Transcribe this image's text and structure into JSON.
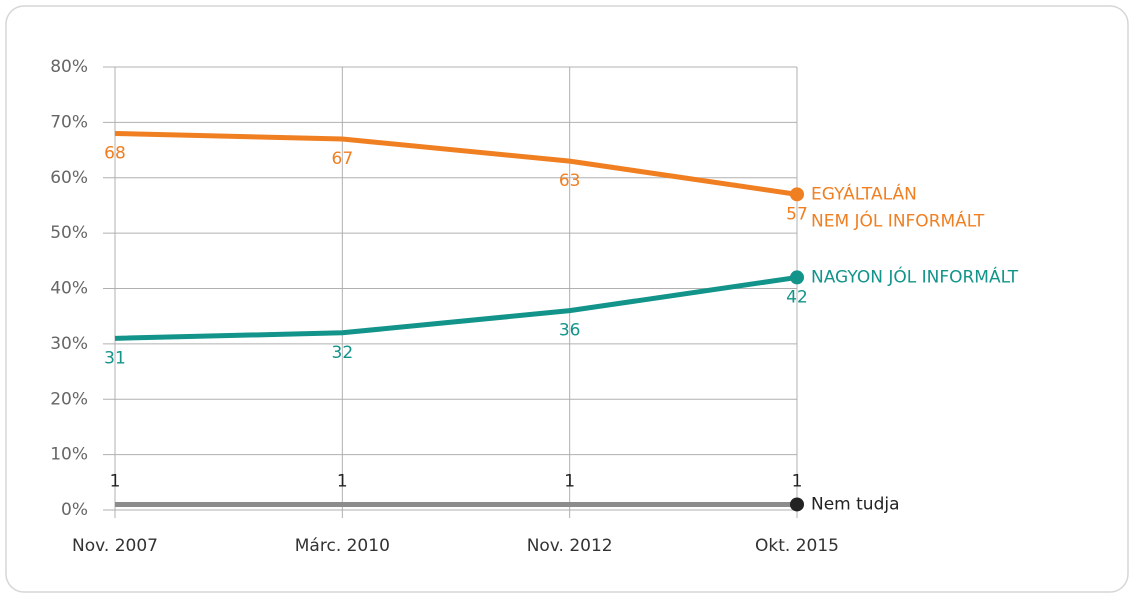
{
  "chart_data": {
    "type": "line",
    "categories": [
      "Nov. 2007",
      "Márc. 2010",
      "Nov. 2012",
      "Okt. 2015"
    ],
    "series": [
      {
        "name": "EGYÁLTALÁN NEM JÓL INFORMÁLT",
        "color": "#f07f22",
        "values": [
          68,
          67,
          63,
          57
        ]
      },
      {
        "name": "NAGYON JÓL INFORMÁLT",
        "color": "#12948a",
        "values": [
          31,
          32,
          36,
          42
        ]
      },
      {
        "name": "Nem tudja",
        "color": "#8c8c8c",
        "values": [
          1,
          1,
          1,
          1
        ]
      }
    ],
    "ylim": [
      0,
      80
    ],
    "yticks": [
      {
        "value": 0,
        "label": "0%"
      },
      {
        "value": 10,
        "label": "10%"
      },
      {
        "value": 20,
        "label": "20%"
      },
      {
        "value": 30,
        "label": "30%"
      },
      {
        "value": 40,
        "label": "40%"
      },
      {
        "value": 50,
        "label": "50%"
      },
      {
        "value": 60,
        "label": "60%"
      },
      {
        "value": 70,
        "label": "70%"
      },
      {
        "value": 80,
        "label": "80%"
      }
    ],
    "grid": true
  }
}
